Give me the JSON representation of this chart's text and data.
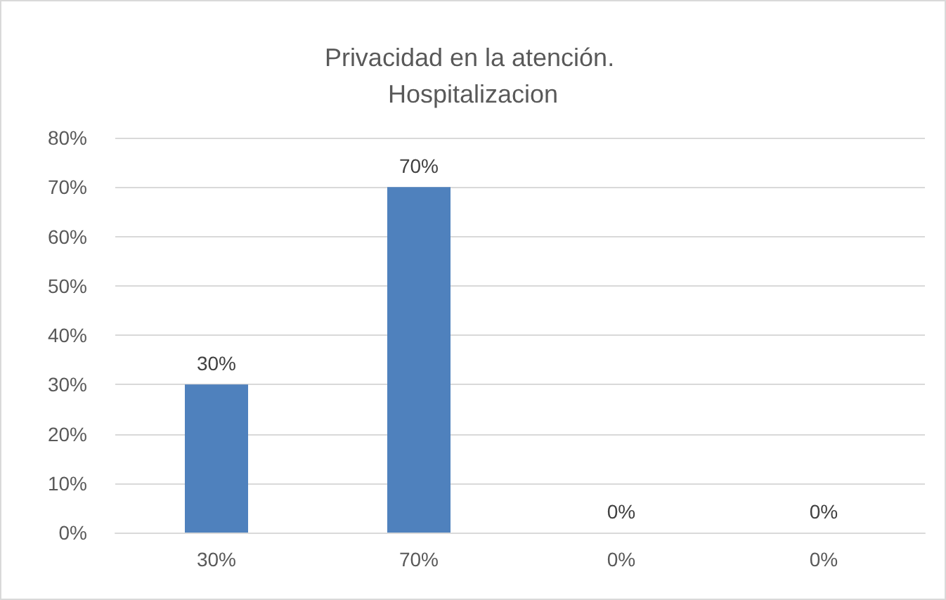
{
  "chart_data": {
    "type": "bar",
    "title": "Privacidad en la atención. Hospitalizacion",
    "categories": [
      "30%",
      "70%",
      "0%",
      "0%"
    ],
    "values": [
      30,
      70,
      0,
      0
    ],
    "color": "#4f81bd",
    "value_labels": [
      "30%",
      "70%",
      "0%",
      "0%"
    ],
    "ylim": [
      0,
      80
    ],
    "yticks": [
      {
        "value": 0,
        "label": "0%"
      },
      {
        "value": 10,
        "label": "10%"
      },
      {
        "value": 20,
        "label": "20%"
      },
      {
        "value": 30,
        "label": "30%"
      },
      {
        "value": 40,
        "label": "40%"
      },
      {
        "value": 50,
        "label": "50%"
      },
      {
        "value": 60,
        "label": "60%"
      },
      {
        "value": 70,
        "label": "70%"
      },
      {
        "value": 80,
        "label": "80%"
      }
    ],
    "grid": "y"
  }
}
